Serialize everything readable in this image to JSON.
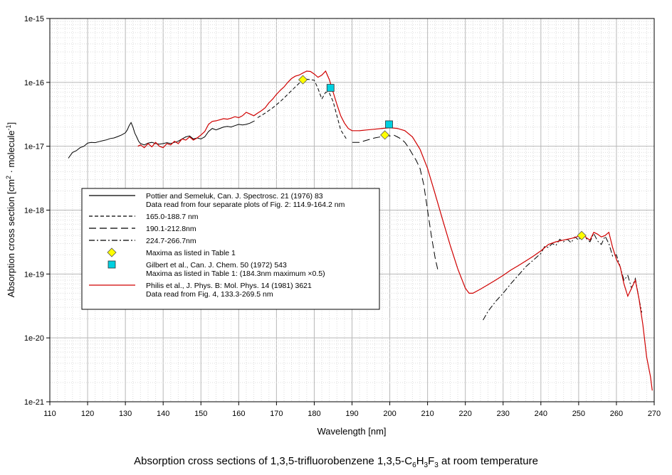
{
  "chart_data": {
    "type": "line",
    "yscale": "log",
    "xlabel": "Wavelength [nm]",
    "ylabel": "Absorption cross section [cm² · molecule⁻¹]",
    "ylabel_parts": [
      "Absorption cross section [cm",
      "2",
      " · molecule",
      "-1",
      "]"
    ],
    "xlim": [
      110,
      270
    ],
    "ylim": [
      1e-21,
      1e-15
    ],
    "x_ticks": [
      110,
      120,
      130,
      140,
      150,
      160,
      170,
      180,
      190,
      200,
      210,
      220,
      230,
      240,
      250,
      260,
      270
    ],
    "x_tick_labels": [
      "110",
      "120",
      "130",
      "140",
      "150",
      "160",
      "170",
      "180",
      "190",
      "200",
      "210",
      "220",
      "230",
      "240",
      "250",
      "260",
      "270"
    ],
    "y_ticks": [
      1e-21,
      1e-20,
      1e-19,
      1e-18,
      1e-17,
      1e-16,
      1e-15
    ],
    "y_tick_labels": [
      "1e-21",
      "1e-20",
      "1e-19",
      "1e-18",
      "1e-17",
      "1e-16",
      "1e-15"
    ],
    "grid": true,
    "legend_position": "center-left",
    "series": [
      {
        "name": "Pottier and Semeluk, Can. J. Spectrosc. 21 (1976) 83 — Data read from four separate plots of Fig. 2: 114.9-164.2 nm",
        "color": "#000000",
        "dash": "solid",
        "x": [
          114.9,
          116,
          117,
          118,
          119,
          120,
          121,
          122,
          123,
          124,
          125,
          126,
          127,
          128,
          129,
          130,
          130.5,
          131,
          131.5,
          132,
          132.5,
          133,
          133.5,
          134,
          135,
          136,
          137,
          138,
          139,
          140,
          141,
          142,
          143,
          144,
          145,
          146,
          147,
          148,
          149,
          150,
          151,
          152,
          153,
          154,
          155,
          156,
          157,
          158,
          159,
          160,
          161,
          162,
          163,
          164.2
        ],
        "y": [
          6.5e-18,
          8e-18,
          8.5e-18,
          9.5e-18,
          1e-17,
          1.12e-17,
          1.15e-17,
          1.14e-17,
          1.18e-17,
          1.22e-17,
          1.26e-17,
          1.32e-17,
          1.35e-17,
          1.42e-17,
          1.5e-17,
          1.62e-17,
          1.8e-17,
          2.1e-17,
          2.35e-17,
          2e-17,
          1.6e-17,
          1.4e-17,
          1.2e-17,
          1.1e-17,
          1.05e-17,
          1.12e-17,
          1.15e-17,
          1.1e-17,
          1.08e-17,
          1.1e-17,
          1.14e-17,
          1.1e-17,
          1.15e-17,
          1.2e-17,
          1.3e-17,
          1.4e-17,
          1.45e-17,
          1.3e-17,
          1.35e-17,
          1.3e-17,
          1.4e-17,
          1.7e-17,
          1.9e-17,
          1.8e-17,
          1.9e-17,
          2e-17,
          2.05e-17,
          2e-17,
          2.1e-17,
          2.2e-17,
          2.15e-17,
          2.2e-17,
          2.3e-17,
          2.5e-17
        ]
      },
      {
        "name": "165.0-188.7 nm",
        "color": "#000000",
        "dash": "5,3",
        "x": [
          165,
          167,
          169,
          171,
          173,
          175,
          177,
          178,
          179,
          180,
          181,
          182,
          183,
          184,
          185,
          186,
          187,
          188.7
        ],
        "y": [
          2.8e-17,
          3.3e-17,
          4e-17,
          5e-17,
          6.5e-17,
          8.5e-17,
          1.1e-16,
          1.12e-16,
          1.1e-16,
          1.08e-16,
          8e-17,
          5.5e-17,
          7e-17,
          6.8e-17,
          5e-17,
          3e-17,
          1.8e-17,
          1.25e-17
        ]
      },
      {
        "name": "190.1-212.8nm",
        "color": "#000000",
        "dash": "10,5",
        "x": [
          190.1,
          192,
          194,
          196,
          198,
          199,
          200,
          201,
          202,
          203,
          204,
          205,
          206,
          207,
          208,
          209,
          210,
          211,
          212,
          212.8
        ],
        "y": [
          1.15e-17,
          1.15e-17,
          1.25e-17,
          1.35e-17,
          1.42e-17,
          1.48e-17,
          1.45e-17,
          1.5e-17,
          1.4e-17,
          1.3e-17,
          1.15e-17,
          9.5e-18,
          7.5e-18,
          6e-18,
          4.5e-18,
          2.5e-18,
          1e-18,
          4e-19,
          1.8e-19,
          1.1e-19
        ]
      },
      {
        "name": "224.7-266.7nm",
        "color": "#000000",
        "dash": "8,3,2,3",
        "x": [
          224.7,
          226,
          228,
          230,
          232,
          234,
          236,
          238,
          240,
          241,
          242,
          243,
          244,
          245,
          246,
          247,
          248,
          249,
          250,
          251,
          252,
          253,
          254,
          255,
          256,
          257,
          258,
          259,
          260,
          261,
          262,
          263,
          264,
          265,
          266,
          266.7
        ],
        "y": [
          1.9e-20,
          2.6e-20,
          3.7e-20,
          5e-20,
          7e-20,
          9.5e-20,
          1.3e-19,
          1.65e-19,
          2.1e-19,
          2.7e-19,
          2.6e-19,
          3e-19,
          2.8e-19,
          3.5e-19,
          3.2e-19,
          3.5e-19,
          3.1e-19,
          3.8e-19,
          3.4e-19,
          4.2e-19,
          3.6e-19,
          3.2e-19,
          4.3e-19,
          3.3e-19,
          2.9e-19,
          3.9e-19,
          3e-19,
          1.9e-19,
          2e-19,
          1.3e-19,
          8e-20,
          9.5e-20,
          6e-20,
          8.5e-20,
          4e-20,
          2.5e-20
        ]
      },
      {
        "name": "Philis et al., J. Phys. B: Mol. Phys. 14 (1981) 3621 — Data read from Fig. 4, 133.3-269.5 nm",
        "color": "#d00000",
        "dash": "solid",
        "x": [
          133.3,
          134,
          135,
          136,
          137,
          138,
          139,
          140,
          141,
          142,
          143,
          144,
          145,
          146,
          147,
          148,
          149,
          150,
          151,
          152,
          153,
          154,
          155,
          156,
          157,
          158,
          159,
          160,
          161,
          162,
          163,
          164,
          165,
          166,
          167,
          168,
          169,
          170,
          171,
          172,
          173,
          174,
          175,
          176,
          177,
          178,
          179,
          180,
          181,
          182,
          183,
          184,
          185,
          186,
          187,
          188,
          189,
          190,
          192,
          194,
          196,
          198,
          200,
          202,
          204,
          206,
          208,
          210,
          212,
          214,
          216,
          218,
          220,
          221,
          222,
          224,
          226,
          228,
          230,
          232,
          234,
          236,
          238,
          240,
          242,
          244,
          246,
          248,
          250,
          251,
          252,
          253,
          254,
          255,
          256,
          257,
          258,
          259,
          260,
          261,
          262,
          263,
          264,
          265,
          266,
          267,
          268,
          269,
          269.5
        ],
        "y": [
          1e-17,
          1.05e-17,
          9.5e-18,
          1.1e-17,
          9.8e-18,
          1.15e-17,
          1e-17,
          9.5e-18,
          1.1e-17,
          1.05e-17,
          1.2e-17,
          1.1e-17,
          1.3e-17,
          1.25e-17,
          1.4e-17,
          1.25e-17,
          1.35e-17,
          1.5e-17,
          1.7e-17,
          2.2e-17,
          2.45e-17,
          2.5e-17,
          2.6e-17,
          2.7e-17,
          2.65e-17,
          2.75e-17,
          2.9e-17,
          2.8e-17,
          3e-17,
          3.4e-17,
          3.2e-17,
          3e-17,
          3.3e-17,
          3.6e-17,
          4e-17,
          4.8e-17,
          5.5e-17,
          6.5e-17,
          7.5e-17,
          8.5e-17,
          1e-16,
          1.15e-16,
          1.25e-16,
          1.3e-16,
          1.4e-16,
          1.5e-16,
          1.48e-16,
          1.35e-16,
          1.2e-16,
          1.3e-16,
          1.5e-16,
          1.1e-16,
          7e-17,
          4.5e-17,
          3e-17,
          2.3e-17,
          1.9e-17,
          1.75e-17,
          1.75e-17,
          1.8e-17,
          1.85e-17,
          1.9e-17,
          1.95e-17,
          1.9e-17,
          1.75e-17,
          1.4e-17,
          9e-18,
          4.5e-18,
          1.8e-18,
          7e-19,
          2.8e-19,
          1.2e-19,
          6e-20,
          5e-20,
          5e-20,
          5.8e-20,
          6.8e-20,
          8e-20,
          9.5e-20,
          1.15e-19,
          1.35e-19,
          1.6e-19,
          1.9e-19,
          2.3e-19,
          2.9e-19,
          3.2e-19,
          3.4e-19,
          3.6e-19,
          3.9e-19,
          4.3e-19,
          3.7e-19,
          3.4e-19,
          4.5e-19,
          4.2e-19,
          3.8e-19,
          4e-19,
          4.5e-19,
          2.6e-19,
          1.7e-19,
          1.3e-19,
          7e-20,
          4.5e-20,
          6e-20,
          8e-20,
          4e-20,
          1.6e-20,
          5e-21,
          2.5e-21,
          1.5e-21
        ]
      },
      {
        "name": "Maxima as listed in Table 1",
        "color": "#ffff00",
        "marker": "diamond",
        "x": [
          177,
          198.7,
          250.8
        ],
        "y": [
          1.1e-16,
          1.5e-17,
          4e-19
        ]
      },
      {
        "name": "Gilbert et al., Can. J. Chem. 50 (1972) 543 — Maxima as listed in Table 1: (184.3nm maximum ×0.5)",
        "color": "#00d0e0",
        "marker": "square",
        "x": [
          184.3,
          199.8
        ],
        "y": [
          8.2e-17,
          2.2e-17
        ]
      }
    ]
  },
  "legend": {
    "items": [
      {
        "lines": [
          "Pottier and Semeluk, Can. J. Spectrosc. 21 (1976) 83",
          "Data read from four separate plots of Fig. 2: 114.9-164.2 nm"
        ],
        "kind": "line",
        "color": "#000000",
        "dash": "solid"
      },
      {
        "lines": [
          "165.0-188.7 nm"
        ],
        "kind": "line",
        "color": "#000000",
        "dash": "5,3"
      },
      {
        "lines": [
          "190.1-212.8nm"
        ],
        "kind": "line",
        "color": "#000000",
        "dash": "10,5"
      },
      {
        "lines": [
          "224.7-266.7nm"
        ],
        "kind": "line",
        "color": "#000000",
        "dash": "8,3,2,3"
      },
      {
        "lines": [
          "Maxima as listed in Table 1"
        ],
        "kind": "diamond",
        "color": "#ffff00"
      },
      {
        "lines": [
          "Gilbert et al., Can. J. Chem. 50 (1972) 543",
          "Maxima as listed in Table 1: (184.3nm maximum ×0.5)"
        ],
        "kind": "square",
        "color": "#00d0e0"
      },
      {
        "lines": [
          "Philis et al., J. Phys. B: Mol. Phys. 14 (1981) 3621",
          "Data read from Fig. 4, 133.3-269.5 nm"
        ],
        "kind": "line",
        "color": "#d00000",
        "dash": "solid"
      }
    ]
  },
  "caption": {
    "prefix": "Absorption cross sections of 1,3,5-trifluorobenzene 1,3,5-C",
    "sub1": "6",
    "mid1": "H",
    "sub2": "3",
    "mid2": "F",
    "sub3": "3",
    "suffix": " at room temperature"
  }
}
